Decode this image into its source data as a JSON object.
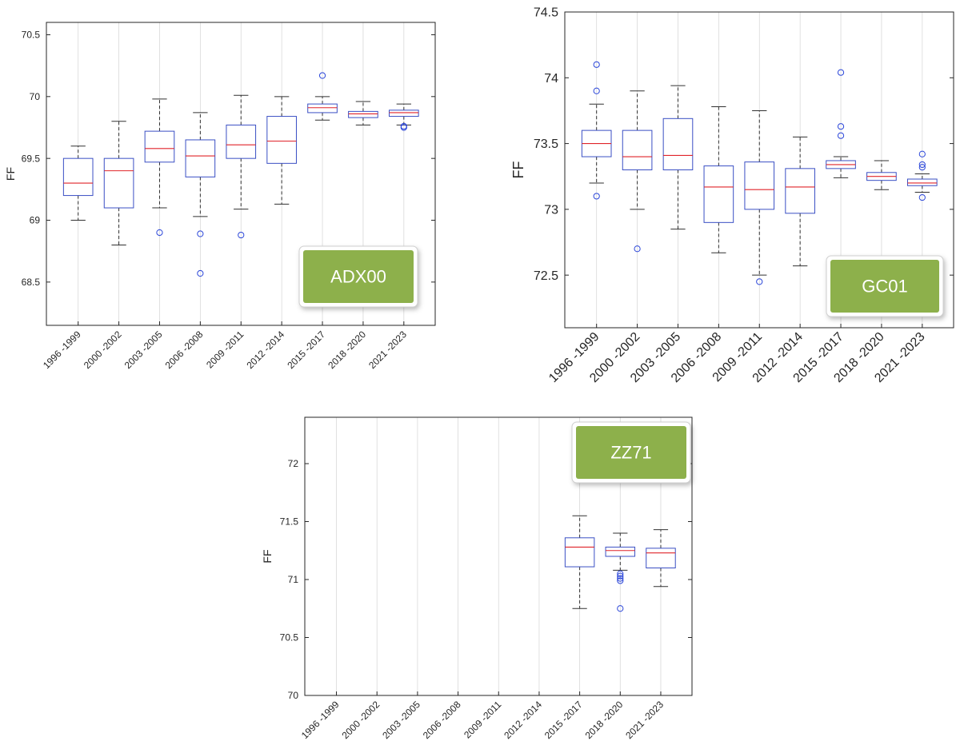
{
  "chart_data": [
    {
      "type": "boxplot",
      "badge": "ADX00",
      "ylabel": "FF",
      "ylim": [
        68.15,
        70.6
      ],
      "yticks": [
        "68.5",
        "69",
        "69.5",
        "70",
        "70.5"
      ],
      "ytick_values": [
        68.5,
        69,
        69.5,
        70,
        70.5
      ],
      "grid": "vertical",
      "categories": [
        "1996 -1999",
        "2000 -2002",
        "2003 -2005",
        "2006 -2008",
        "2009 -2011",
        "2012 -2014",
        "2015 -2017",
        "2018 -2020",
        "2021 -2023"
      ],
      "boxes": [
        {
          "whisker_low": 69.0,
          "q1": 69.2,
          "median": 69.3,
          "q3": 69.5,
          "whisker_high": 69.6,
          "outliers": []
        },
        {
          "whisker_low": 68.8,
          "q1": 69.1,
          "median": 69.4,
          "q3": 69.5,
          "whisker_high": 69.8,
          "outliers": []
        },
        {
          "whisker_low": 69.1,
          "q1": 69.47,
          "median": 69.58,
          "q3": 69.72,
          "whisker_high": 69.98,
          "outliers": [
            68.9
          ]
        },
        {
          "whisker_low": 69.03,
          "q1": 69.35,
          "median": 69.52,
          "q3": 69.65,
          "whisker_high": 69.87,
          "outliers": [
            68.89,
            68.57
          ]
        },
        {
          "whisker_low": 69.09,
          "q1": 69.5,
          "median": 69.61,
          "q3": 69.77,
          "whisker_high": 70.01,
          "outliers": [
            68.88
          ]
        },
        {
          "whisker_low": 69.13,
          "q1": 69.46,
          "median": 69.64,
          "q3": 69.84,
          "whisker_high": 70.0,
          "outliers": []
        },
        {
          "whisker_low": 69.81,
          "q1": 69.87,
          "median": 69.91,
          "q3": 69.94,
          "whisker_high": 70.0,
          "outliers": [
            70.17
          ]
        },
        {
          "whisker_low": 69.77,
          "q1": 69.83,
          "median": 69.86,
          "q3": 69.88,
          "whisker_high": 69.96,
          "outliers": []
        },
        {
          "whisker_low": 69.77,
          "q1": 69.84,
          "median": 69.87,
          "q3": 69.89,
          "whisker_high": 69.94,
          "outliers": [
            69.75,
            69.76
          ]
        }
      ]
    },
    {
      "type": "boxplot",
      "badge": "GC01",
      "ylabel": "FF",
      "ylim": [
        72.1,
        74.5
      ],
      "yticks": [
        "72.5",
        "73",
        "73.5",
        "74",
        "74.5"
      ],
      "ytick_values": [
        72.5,
        73,
        73.5,
        74,
        74.5
      ],
      "grid": "vertical",
      "categories": [
        "1996 -1999",
        "2000 -2002",
        "2003 -2005",
        "2006 -2008",
        "2009 -2011",
        "2012 -2014",
        "2015 -2017",
        "2018 -2020",
        "2021 -2023"
      ],
      "boxes": [
        {
          "whisker_low": 73.2,
          "q1": 73.4,
          "median": 73.5,
          "q3": 73.6,
          "whisker_high": 73.8,
          "outliers": [
            74.1,
            73.9,
            73.1
          ]
        },
        {
          "whisker_low": 73.0,
          "q1": 73.3,
          "median": 73.4,
          "q3": 73.6,
          "whisker_high": 73.9,
          "outliers": [
            72.7
          ]
        },
        {
          "whisker_low": 72.85,
          "q1": 73.3,
          "median": 73.41,
          "q3": 73.69,
          "whisker_high": 73.94,
          "outliers": []
        },
        {
          "whisker_low": 72.67,
          "q1": 72.9,
          "median": 73.17,
          "q3": 73.33,
          "whisker_high": 73.78,
          "outliers": []
        },
        {
          "whisker_low": 72.5,
          "q1": 73.0,
          "median": 73.15,
          "q3": 73.36,
          "whisker_high": 73.75,
          "outliers": [
            72.45
          ]
        },
        {
          "whisker_low": 72.57,
          "q1": 72.97,
          "median": 73.17,
          "q3": 73.31,
          "whisker_high": 73.55,
          "outliers": []
        },
        {
          "whisker_low": 73.24,
          "q1": 73.31,
          "median": 73.34,
          "q3": 73.37,
          "whisker_high": 73.4,
          "outliers": [
            74.04,
            73.63,
            73.56
          ]
        },
        {
          "whisker_low": 73.15,
          "q1": 73.22,
          "median": 73.25,
          "q3": 73.28,
          "whisker_high": 73.37,
          "outliers": []
        },
        {
          "whisker_low": 73.13,
          "q1": 73.18,
          "median": 73.2,
          "q3": 73.23,
          "whisker_high": 73.27,
          "outliers": [
            73.42,
            73.34,
            73.32,
            73.09
          ]
        }
      ]
    },
    {
      "type": "boxplot",
      "badge": "ZZ71",
      "ylabel": "FF",
      "ylim": [
        70.0,
        72.4
      ],
      "yticks": [
        "70",
        "70.5",
        "71",
        "71.5",
        "72"
      ],
      "ytick_values": [
        70,
        70.5,
        71,
        71.5,
        72
      ],
      "grid": "vertical",
      "categories": [
        "1996 -1999",
        "2000 -2002",
        "2003 -2005",
        "2006 -2008",
        "2009 -2011",
        "2012 -2014",
        "2015 -2017",
        "2018 -2020",
        "2021 -2023"
      ],
      "boxes": [
        null,
        null,
        null,
        null,
        null,
        null,
        {
          "whisker_low": 70.75,
          "q1": 71.11,
          "median": 71.28,
          "q3": 71.36,
          "whisker_high": 71.55,
          "outliers": []
        },
        {
          "whisker_low": 71.08,
          "q1": 71.2,
          "median": 71.25,
          "q3": 71.28,
          "whisker_high": 71.4,
          "outliers": [
            71.05,
            71.03,
            71.01,
            70.99,
            70.75
          ]
        },
        {
          "whisker_low": 70.94,
          "q1": 71.1,
          "median": 71.23,
          "q3": 71.27,
          "whisker_high": 71.43,
          "outliers": []
        }
      ]
    }
  ]
}
